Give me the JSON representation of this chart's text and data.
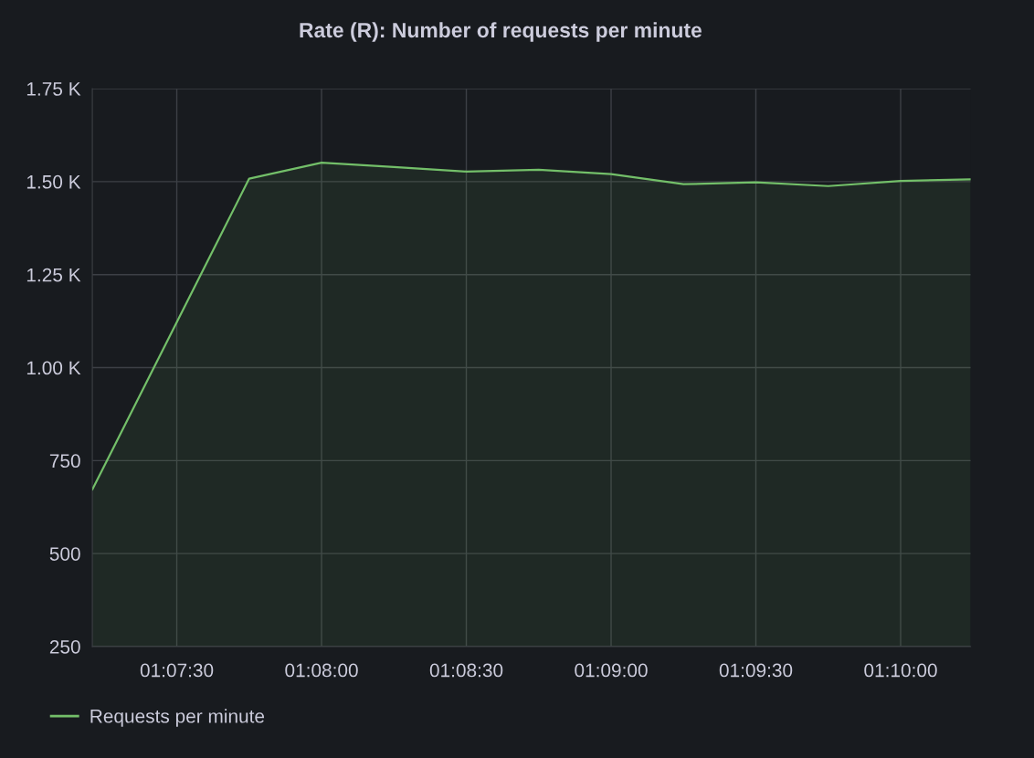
{
  "chart_data": {
    "type": "area",
    "title": "Rate (R): Number of requests per minute",
    "x": [
      1.1201389,
      1.1291667,
      1.1333333,
      1.1375,
      1.1416667,
      1.1458333,
      1.15,
      1.1541667,
      1.1583333,
      1.1625,
      1.1666667,
      1.1706944
    ],
    "series": [
      {
        "name": "Requests per minute",
        "color": "#73bf69",
        "values": [
          672,
          1508,
          1551,
          1539,
          1527,
          1532,
          1520,
          1493,
          1498,
          1488,
          1502,
          1506
        ]
      }
    ],
    "xlim": [
      1.1201389,
      1.1706944
    ],
    "xticks": [
      {
        "value": 1.125,
        "label": "01:07:30"
      },
      {
        "value": 1.1333333,
        "label": "01:08:00"
      },
      {
        "value": 1.1416667,
        "label": "01:08:30"
      },
      {
        "value": 1.15,
        "label": "01:09:00"
      },
      {
        "value": 1.1583333,
        "label": "01:09:30"
      },
      {
        "value": 1.1666667,
        "label": "01:10:00"
      }
    ],
    "ylim": [
      250,
      1750
    ],
    "yticks": [
      250,
      500,
      750,
      {
        "value": 1000,
        "label": "1.00 K"
      },
      {
        "value": 1250,
        "label": "1.25 K"
      },
      {
        "value": 1500,
        "label": "1.50 K"
      },
      {
        "value": 1750,
        "label": "1.75 K"
      }
    ],
    "grid": true,
    "legend": "bottom"
  }
}
